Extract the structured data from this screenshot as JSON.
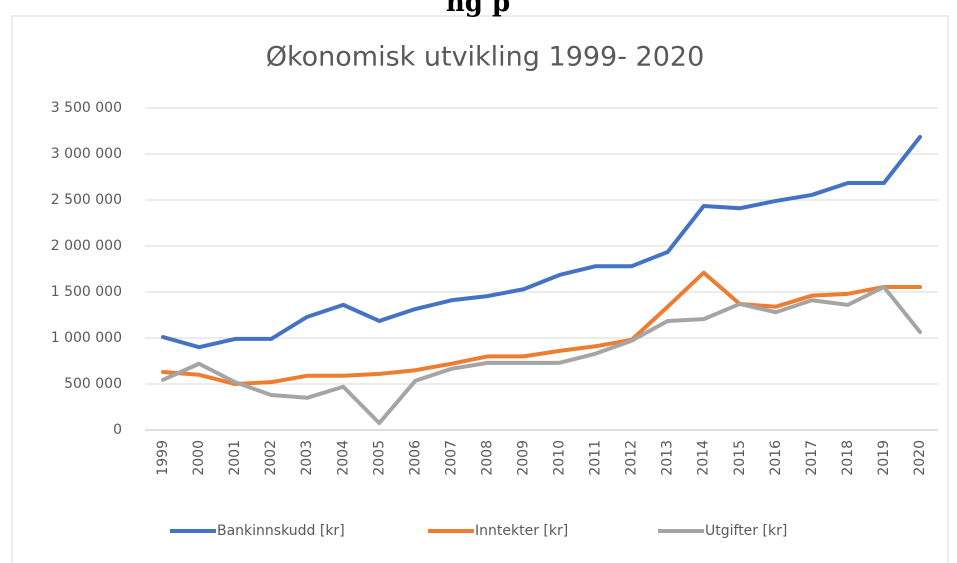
{
  "page_header": "ng p",
  "chart_data": {
    "type": "line",
    "title": "Økonomisk utvikling 1999- 2020",
    "categories": [
      "1999",
      "2000",
      "2001",
      "2002",
      "2003",
      "2004",
      "2005",
      "2006",
      "2007",
      "2008",
      "2009",
      "2010",
      "2011",
      "2012",
      "2013",
      "2014",
      "2015",
      "2016",
      "2017",
      "2018",
      "2019",
      "2020"
    ],
    "series": [
      {
        "name": "Bankinnskudd [kr]",
        "color": "#4472c4",
        "values": [
          1010000,
          900000,
          990000,
          990000,
          1230000,
          1360000,
          1185000,
          1315000,
          1410000,
          1455000,
          1530000,
          1685000,
          1780000,
          1780000,
          1935000,
          2435000,
          2410000,
          2490000,
          2555000,
          2685000,
          2685000,
          3185000
        ]
      },
      {
        "name": "Inntekter [kr]",
        "color": "#ed7d31",
        "values": [
          630000,
          600000,
          500000,
          520000,
          590000,
          590000,
          610000,
          650000,
          720000,
          800000,
          800000,
          860000,
          910000,
          980000,
          1340000,
          1710000,
          1370000,
          1340000,
          1460000,
          1480000,
          1555000,
          1555000
        ]
      },
      {
        "name": "Utgifter [kr]",
        "color": "#a5a5a5",
        "values": [
          545000,
          720000,
          520000,
          380000,
          350000,
          470000,
          75000,
          535000,
          665000,
          730000,
          730000,
          730000,
          830000,
          970000,
          1185000,
          1205000,
          1370000,
          1280000,
          1410000,
          1360000,
          1555000,
          1065000
        ]
      }
    ],
    "ylim": [
      0,
      3500000
    ],
    "yticks": [
      0,
      {
        "value": 500000,
        "label": "500 000"
      },
      {
        "value": 1000000,
        "label": "1 000 000"
      },
      {
        "value": 1500000,
        "label": "1 500 000"
      },
      {
        "value": 2000000,
        "label": "2 000 000"
      },
      {
        "value": 2500000,
        "label": "2 500 000"
      },
      {
        "value": 3000000,
        "label": "3 000 000"
      },
      {
        "value": 3500000,
        "label": "3 500 000"
      }
    ],
    "grid": true,
    "legend": "bottom"
  }
}
